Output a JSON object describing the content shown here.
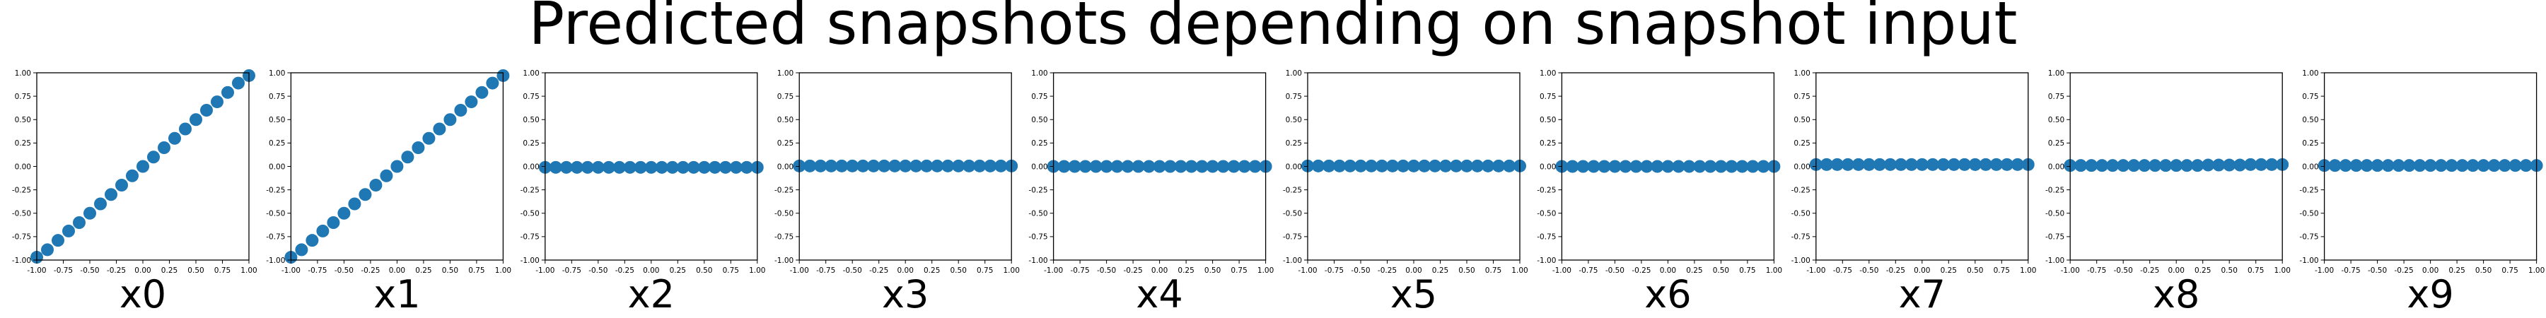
{
  "figure": {
    "suptitle": "Predicted snapshots depending on snapshot input",
    "point_color": "#1f77b4",
    "axis_color": "#000000",
    "tick_labels": [
      "-1.00",
      "-0.75",
      "-0.50",
      "-0.25",
      "0.00",
      "0.25",
      "0.50",
      "0.75",
      "1.00"
    ]
  },
  "chart_data": [
    {
      "type": "scatter",
      "xlabel": "x0",
      "xlim": [
        -1,
        1
      ],
      "ylim": [
        -1,
        1
      ],
      "x": [
        -1.0,
        -0.9,
        -0.8,
        -0.7,
        -0.6,
        -0.5,
        -0.4,
        -0.3,
        -0.2,
        -0.1,
        0.0,
        0.1,
        0.2,
        0.3,
        0.4,
        0.5,
        0.6,
        0.7,
        0.8,
        0.9,
        1.0
      ],
      "y": [
        -0.97,
        -0.89,
        -0.79,
        -0.69,
        -0.6,
        -0.5,
        -0.4,
        -0.3,
        -0.2,
        -0.1,
        0.0,
        0.1,
        0.2,
        0.3,
        0.4,
        0.5,
        0.6,
        0.69,
        0.79,
        0.89,
        0.97
      ]
    },
    {
      "type": "scatter",
      "xlabel": "x1",
      "xlim": [
        -1,
        1
      ],
      "ylim": [
        -1,
        1
      ],
      "x": [
        -1.0,
        -0.9,
        -0.8,
        -0.7,
        -0.6,
        -0.5,
        -0.4,
        -0.3,
        -0.2,
        -0.1,
        0.0,
        0.1,
        0.2,
        0.3,
        0.4,
        0.5,
        0.6,
        0.7,
        0.8,
        0.9,
        1.0
      ],
      "y": [
        -0.97,
        -0.89,
        -0.79,
        -0.69,
        -0.6,
        -0.5,
        -0.4,
        -0.3,
        -0.2,
        -0.1,
        0.0,
        0.1,
        0.2,
        0.3,
        0.4,
        0.5,
        0.6,
        0.69,
        0.79,
        0.89,
        0.97
      ]
    },
    {
      "type": "scatter",
      "xlabel": "x2",
      "xlim": [
        -1,
        1
      ],
      "ylim": [
        -1,
        1
      ],
      "x": [
        -1.0,
        -0.9,
        -0.8,
        -0.7,
        -0.6,
        -0.5,
        -0.4,
        -0.3,
        -0.2,
        -0.1,
        0.0,
        0.1,
        0.2,
        0.3,
        0.4,
        0.5,
        0.6,
        0.7,
        0.8,
        0.9,
        1.0
      ],
      "y": [
        -0.01,
        -0.01,
        -0.01,
        -0.01,
        -0.01,
        -0.01,
        -0.01,
        -0.01,
        -0.01,
        -0.01,
        -0.01,
        -0.01,
        -0.01,
        -0.01,
        -0.01,
        -0.01,
        -0.01,
        -0.01,
        -0.01,
        -0.01,
        -0.01
      ]
    },
    {
      "type": "scatter",
      "xlabel": "x3",
      "xlim": [
        -1,
        1
      ],
      "ylim": [
        -1,
        1
      ],
      "x": [
        -1.0,
        -0.9,
        -0.8,
        -0.7,
        -0.6,
        -0.5,
        -0.4,
        -0.3,
        -0.2,
        -0.1,
        0.0,
        0.1,
        0.2,
        0.3,
        0.4,
        0.5,
        0.6,
        0.7,
        0.8,
        0.9,
        1.0
      ],
      "y": [
        0.005,
        0.005,
        0.005,
        0.005,
        0.005,
        0.005,
        0.005,
        0.005,
        0.005,
        0.005,
        0.005,
        0.005,
        0.005,
        0.005,
        0.005,
        0.005,
        0.005,
        0.005,
        0.005,
        0.005,
        0.005
      ]
    },
    {
      "type": "scatter",
      "xlabel": "x4",
      "xlim": [
        -1,
        1
      ],
      "ylim": [
        -1,
        1
      ],
      "x": [
        -1.0,
        -0.9,
        -0.8,
        -0.7,
        -0.6,
        -0.5,
        -0.4,
        -0.3,
        -0.2,
        -0.1,
        0.0,
        0.1,
        0.2,
        0.3,
        0.4,
        0.5,
        0.6,
        0.7,
        0.8,
        0.9,
        1.0
      ],
      "y": [
        0.0,
        0.0,
        0.0,
        0.0,
        0.0,
        0.0,
        0.0,
        0.0,
        0.0,
        0.0,
        0.0,
        0.0,
        0.0,
        0.0,
        0.0,
        0.0,
        0.0,
        0.0,
        0.0,
        0.0,
        0.0
      ]
    },
    {
      "type": "scatter",
      "xlabel": "x5",
      "xlim": [
        -1,
        1
      ],
      "ylim": [
        -1,
        1
      ],
      "x": [
        -1.0,
        -0.9,
        -0.8,
        -0.7,
        -0.6,
        -0.5,
        -0.4,
        -0.3,
        -0.2,
        -0.1,
        0.0,
        0.1,
        0.2,
        0.3,
        0.4,
        0.5,
        0.6,
        0.7,
        0.8,
        0.9,
        1.0
      ],
      "y": [
        0.005,
        0.005,
        0.005,
        0.005,
        0.005,
        0.005,
        0.005,
        0.005,
        0.005,
        0.005,
        0.005,
        0.005,
        0.005,
        0.005,
        0.005,
        0.005,
        0.005,
        0.005,
        0.005,
        0.005,
        0.005
      ]
    },
    {
      "type": "scatter",
      "xlabel": "x6",
      "xlim": [
        -1,
        1
      ],
      "ylim": [
        -1,
        1
      ],
      "x": [
        -1.0,
        -0.9,
        -0.8,
        -0.7,
        -0.6,
        -0.5,
        -0.4,
        -0.3,
        -0.2,
        -0.1,
        0.0,
        0.1,
        0.2,
        0.3,
        0.4,
        0.5,
        0.6,
        0.7,
        0.8,
        0.9,
        1.0
      ],
      "y": [
        0.0,
        0.0,
        0.0,
        0.0,
        0.0,
        0.0,
        0.0,
        0.0,
        0.0,
        0.0,
        0.0,
        0.0,
        0.0,
        0.0,
        0.0,
        0.0,
        0.0,
        0.0,
        0.0,
        0.0,
        0.0
      ]
    },
    {
      "type": "scatter",
      "xlabel": "x7",
      "xlim": [
        -1,
        1
      ],
      "ylim": [
        -1,
        1
      ],
      "x": [
        -1.0,
        -0.9,
        -0.8,
        -0.7,
        -0.6,
        -0.5,
        -0.4,
        -0.3,
        -0.2,
        -0.1,
        0.0,
        0.1,
        0.2,
        0.3,
        0.4,
        0.5,
        0.6,
        0.7,
        0.8,
        0.9,
        1.0
      ],
      "y": [
        0.02,
        0.02,
        0.02,
        0.02,
        0.02,
        0.02,
        0.02,
        0.02,
        0.02,
        0.02,
        0.02,
        0.02,
        0.02,
        0.02,
        0.02,
        0.02,
        0.02,
        0.02,
        0.02,
        0.02,
        0.02
      ]
    },
    {
      "type": "scatter",
      "xlabel": "x8",
      "xlim": [
        -1,
        1
      ],
      "ylim": [
        -1,
        1
      ],
      "x": [
        -1.0,
        -0.9,
        -0.8,
        -0.7,
        -0.6,
        -0.5,
        -0.4,
        -0.3,
        -0.2,
        -0.1,
        0.0,
        0.1,
        0.2,
        0.3,
        0.4,
        0.5,
        0.6,
        0.7,
        0.8,
        0.9,
        1.0
      ],
      "y": [
        0.01,
        0.01,
        0.01,
        0.01,
        0.01,
        0.01,
        0.01,
        0.01,
        0.01,
        0.01,
        0.01,
        0.01,
        0.01,
        0.015,
        0.015,
        0.015,
        0.015,
        0.02,
        0.02,
        0.02,
        0.02
      ]
    },
    {
      "type": "scatter",
      "xlabel": "x9",
      "xlim": [
        -1,
        1
      ],
      "ylim": [
        -1,
        1
      ],
      "x": [
        -1.0,
        -0.9,
        -0.8,
        -0.7,
        -0.6,
        -0.5,
        -0.4,
        -0.3,
        -0.2,
        -0.1,
        0.0,
        0.1,
        0.2,
        0.3,
        0.4,
        0.5,
        0.6,
        0.7,
        0.8,
        0.9,
        1.0
      ],
      "y": [
        0.01,
        0.01,
        0.01,
        0.01,
        0.01,
        0.01,
        0.01,
        0.01,
        0.01,
        0.01,
        0.01,
        0.01,
        0.01,
        0.01,
        0.01,
        0.01,
        0.01,
        0.01,
        0.01,
        0.01,
        0.01
      ]
    }
  ]
}
